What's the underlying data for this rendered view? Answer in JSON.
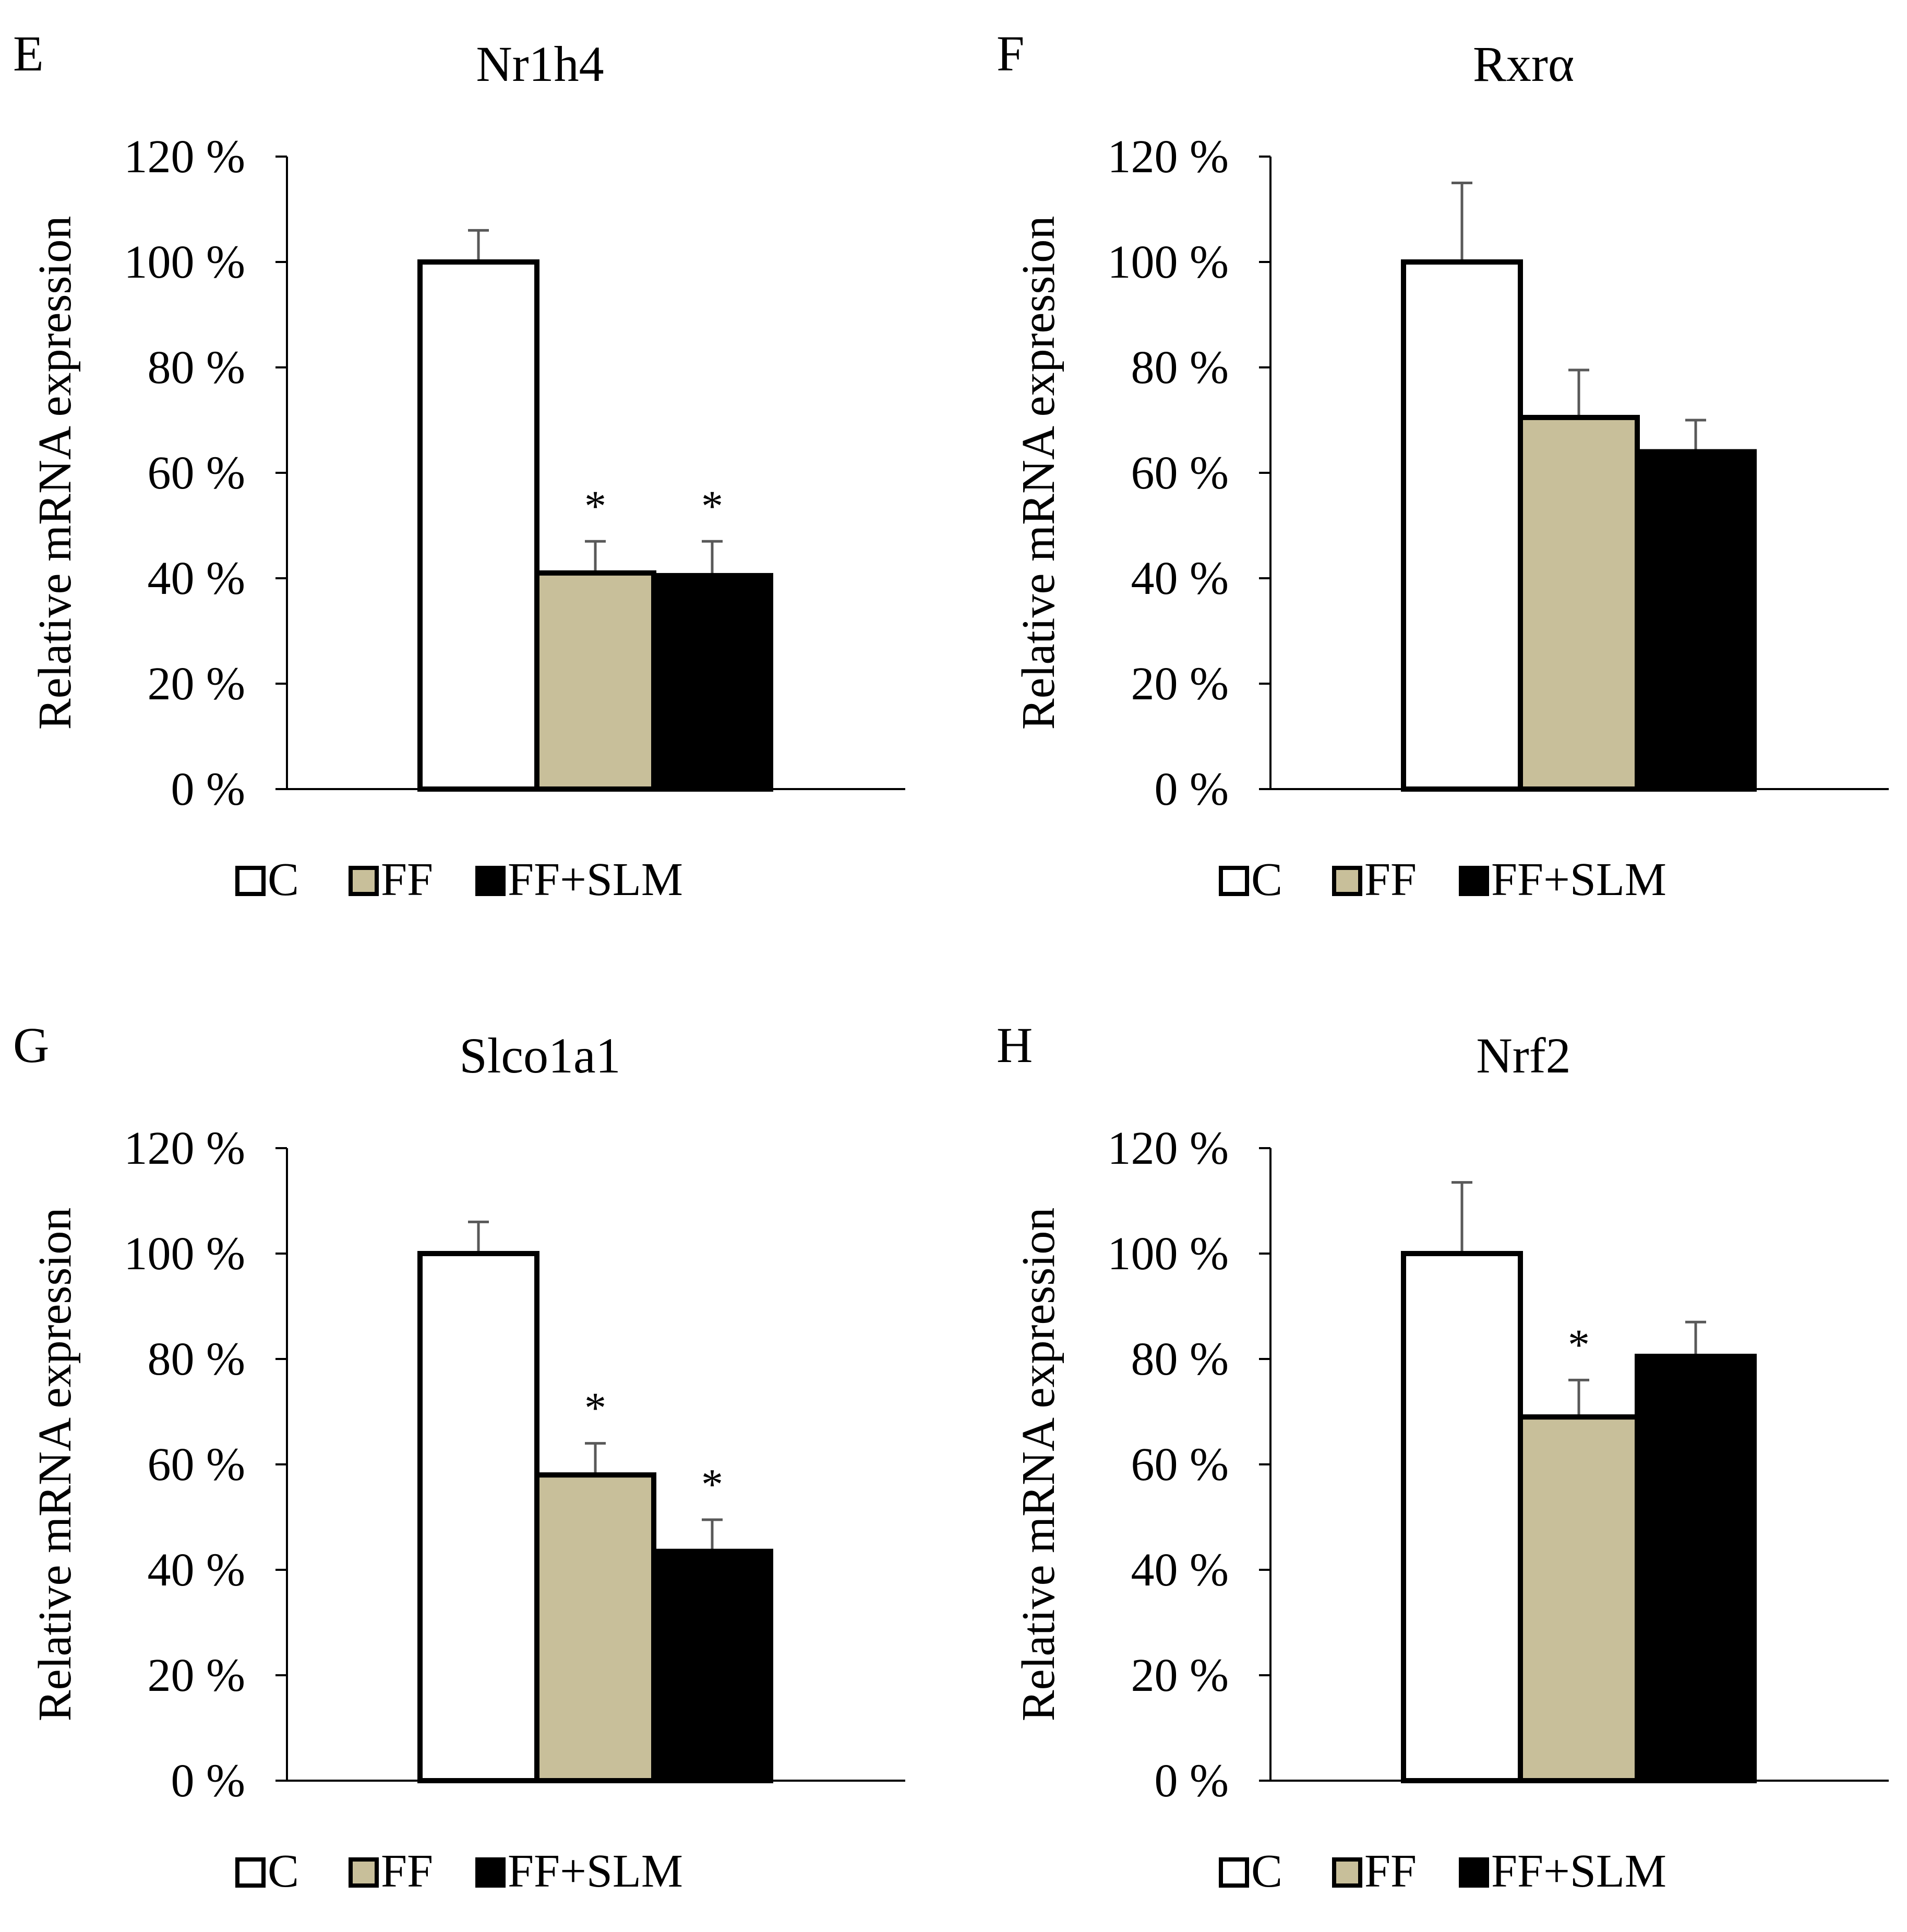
{
  "colors": {
    "C": "#ffffff",
    "FF": "#c8bf9a",
    "FF+SLM": "#000000",
    "error_bar": "#595959",
    "axis": "#000000"
  },
  "chart_data": [
    {
      "type": "bar",
      "panel": "E",
      "title": "Nr1h4",
      "ylabel": "Relative mRNA expression",
      "xlabel": "",
      "ylim": [
        0,
        120
      ],
      "yticks": [
        "0 %",
        "20 %",
        "40 %",
        "60 %",
        "80 %",
        "100 %",
        "120 %"
      ],
      "legend": [
        "C",
        "FF",
        "FF+SLM"
      ],
      "legend_position": "bottom",
      "grid": false,
      "series": [
        {
          "name": "C",
          "value": 100,
          "error": 6,
          "mark": ""
        },
        {
          "name": "FF",
          "value": 41,
          "error": 6,
          "mark": "*"
        },
        {
          "name": "FF+SLM",
          "value": 40.5,
          "error": 6.5,
          "mark": "*"
        }
      ]
    },
    {
      "type": "bar",
      "panel": "F",
      "title": "Rxrα",
      "ylabel": "Relative mRNA expression",
      "xlabel": "",
      "ylim": [
        0,
        120
      ],
      "yticks": [
        "0 %",
        "20 %",
        "40 %",
        "60 %",
        "80 %",
        "100 %",
        "120 %"
      ],
      "legend": [
        "C",
        "FF",
        "FF+SLM"
      ],
      "legend_position": "bottom",
      "grid": false,
      "series": [
        {
          "name": "C",
          "value": 100,
          "error": 15,
          "mark": ""
        },
        {
          "name": "FF",
          "value": 70.5,
          "error": 9,
          "mark": ""
        },
        {
          "name": "FF+SLM",
          "value": 64,
          "error": 6,
          "mark": ""
        }
      ]
    },
    {
      "type": "bar",
      "panel": "G",
      "title": "Slco1a1",
      "ylabel": "Relative mRNA expression",
      "xlabel": "",
      "ylim": [
        0,
        120
      ],
      "yticks": [
        "0 %",
        "20 %",
        "40 %",
        "60 %",
        "80 %",
        "100 %",
        "120 %"
      ],
      "legend": [
        "C",
        "FF",
        "FF+SLM"
      ],
      "legend_position": "bottom",
      "grid": false,
      "series": [
        {
          "name": "C",
          "value": 100,
          "error": 6,
          "mark": ""
        },
        {
          "name": "FF",
          "value": 58,
          "error": 6,
          "mark": "*"
        },
        {
          "name": "FF+SLM",
          "value": 43.5,
          "error": 6,
          "mark": "*"
        }
      ]
    },
    {
      "type": "bar",
      "panel": "H",
      "title": "Nrf2",
      "ylabel": "Relative mRNA expression",
      "xlabel": "",
      "ylim": [
        0,
        120
      ],
      "yticks": [
        "0 %",
        "20 %",
        "40 %",
        "60 %",
        "80 %",
        "100 %",
        "120 %"
      ],
      "legend": [
        "C",
        "FF",
        "FF+SLM"
      ],
      "legend_position": "bottom",
      "grid": false,
      "series": [
        {
          "name": "C",
          "value": 100,
          "error": 13.5,
          "mark": ""
        },
        {
          "name": "FF",
          "value": 69,
          "error": 7,
          "mark": "*"
        },
        {
          "name": "FF+SLM",
          "value": 80.5,
          "error": 6.5,
          "mark": ""
        }
      ]
    }
  ]
}
